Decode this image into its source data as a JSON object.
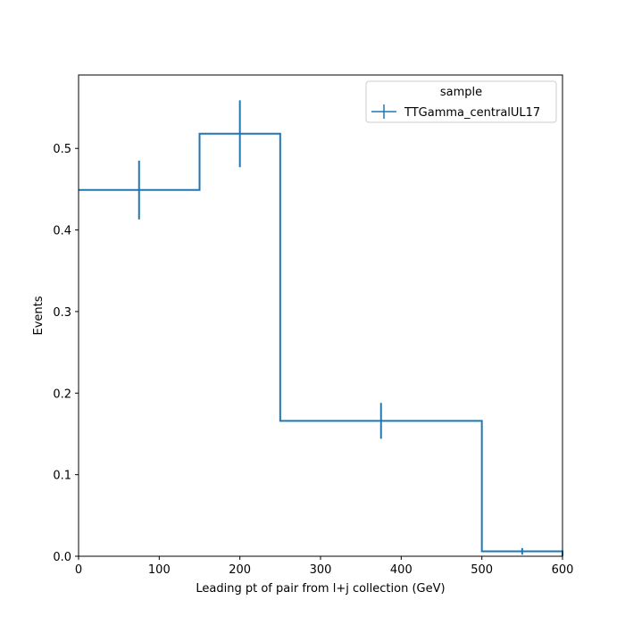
{
  "chart_data": {
    "type": "step-histogram",
    "xlabel": "Leading pt of pair from l+j collection (GeV)",
    "ylabel": "Events",
    "xlim": [
      0,
      600
    ],
    "ylim": [
      0,
      0.59
    ],
    "xticks": [
      0,
      100,
      200,
      300,
      400,
      500,
      600
    ],
    "yticks": [
      0.0,
      0.1,
      0.2,
      0.3,
      0.4,
      0.5
    ],
    "grid": false,
    "legend": {
      "title": "sample",
      "placement": "top-right"
    },
    "series": [
      {
        "name": "TTGamma_centralUL17",
        "color": "#1f77b4",
        "bin_edges": [
          0,
          150,
          250,
          500,
          600
        ],
        "values": [
          0.449,
          0.518,
          0.166,
          0.006
        ],
        "errors": [
          0.036,
          0.041,
          0.022,
          0.004
        ]
      }
    ]
  }
}
